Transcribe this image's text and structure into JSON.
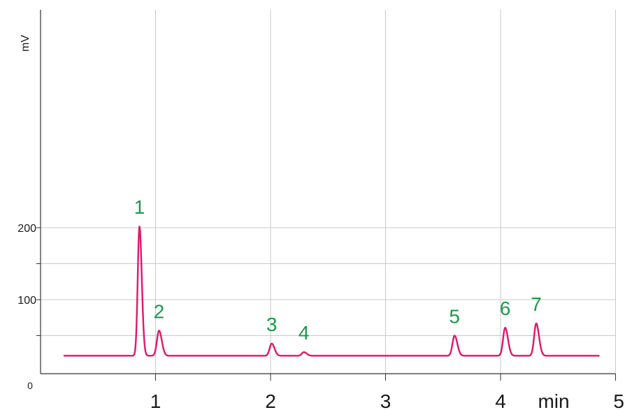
{
  "chart_data": {
    "type": "line",
    "ylabel": "mV",
    "xunit": "min",
    "xlim": [
      0,
      5
    ],
    "ylim": [
      0,
      250
    ],
    "grid": true,
    "x_tick_labels": [
      "1",
      "2",
      "3",
      "4",
      "5"
    ],
    "y_tick_labels": [
      "0",
      "100",
      "200"
    ],
    "baseline": 22,
    "line_color": "#e0176a",
    "label_color": "#1a9a4a",
    "grid_color": "#c8c8c8",
    "peaks": [
      {
        "label": "1",
        "time": 0.86,
        "height": 202
      },
      {
        "label": "2",
        "time": 1.03,
        "height": 57
      },
      {
        "label": "3",
        "time": 2.01,
        "height": 39
      },
      {
        "label": "4",
        "time": 2.29,
        "height": 27
      },
      {
        "label": "5",
        "time": 3.6,
        "height": 50
      },
      {
        "label": "6",
        "time": 4.04,
        "height": 61
      },
      {
        "label": "7",
        "time": 4.31,
        "height": 67
      }
    ]
  }
}
